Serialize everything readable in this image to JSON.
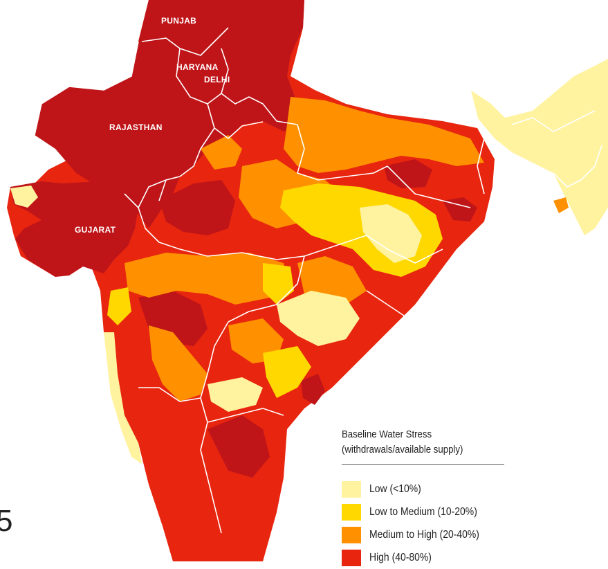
{
  "map": {
    "state_labels": [
      "PUNJAB",
      "HARYANA",
      "DELHI",
      "RAJASTHAN",
      "GUJARAT"
    ]
  },
  "legend": {
    "title_line1": "Baseline Water Stress",
    "title_line2": "(withdrawals/available supply)",
    "items": [
      {
        "label": "Low (<10%)",
        "color": "#fff3a0"
      },
      {
        "label": "Low to Medium (10-20%)",
        "color": "#ffd800"
      },
      {
        "label": "Medium to High (20-40%)",
        "color": "#ff9100"
      },
      {
        "label": "High (40-80%)",
        "color": "#e8250f"
      }
    ]
  },
  "colors": {
    "extremely_high": "#bf1519",
    "high": "#e8250f",
    "medium_high": "#ff9100",
    "low_medium": "#ffd800",
    "low": "#fff3a0",
    "border": "#ffffff"
  },
  "edge_glyph": "5"
}
